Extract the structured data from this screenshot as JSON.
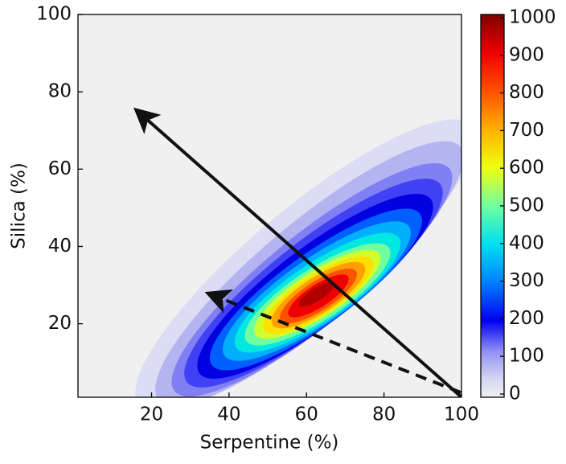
{
  "chart_data": {
    "type": "density",
    "x_label": "Serpentine (%)",
    "y_label": "Silica (%)",
    "xlim": [
      1,
      100
    ],
    "ylim": [
      1,
      100
    ],
    "xticks": [
      20,
      40,
      60,
      80,
      100
    ],
    "yticks": [
      20,
      40,
      60,
      80,
      100
    ],
    "clim": [
      0,
      1000
    ],
    "cticks": [
      0,
      100,
      200,
      300,
      400,
      500,
      600,
      700,
      800,
      900,
      1000
    ],
    "colormap": "jet"
  }
}
